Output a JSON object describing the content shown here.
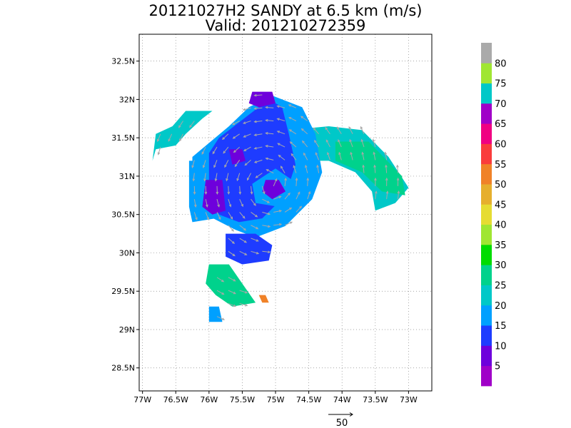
{
  "chart_data": {
    "type": "heatmap",
    "title": "20121027H2 SANDY at 6.5 km (m/s)",
    "subtitle": "Valid: 201210272359",
    "x_ticks": [
      {
        "value": -77.0,
        "label": "77W"
      },
      {
        "value": -76.5,
        "label": "76.5W"
      },
      {
        "value": -76.0,
        "label": "76W"
      },
      {
        "value": -75.5,
        "label": "75.5W"
      },
      {
        "value": -75.0,
        "label": "75W"
      },
      {
        "value": -74.5,
        "label": "74.5W"
      },
      {
        "value": -74.0,
        "label": "74W"
      },
      {
        "value": -73.5,
        "label": "73.5W"
      },
      {
        "value": -73.0,
        "label": "73W"
      }
    ],
    "y_ticks": [
      {
        "value": 28.5,
        "label": "28.5N"
      },
      {
        "value": 29.0,
        "label": "29N"
      },
      {
        "value": 29.5,
        "label": "29.5N"
      },
      {
        "value": 30.0,
        "label": "30N"
      },
      {
        "value": 30.5,
        "label": "30.5N"
      },
      {
        "value": 31.0,
        "label": "31N"
      },
      {
        "value": 31.5,
        "label": "31.5N"
      },
      {
        "value": 32.0,
        "label": "32N"
      },
      {
        "value": 32.5,
        "label": "32.5N"
      }
    ],
    "xlim": [
      -77.05,
      -72.65
    ],
    "ylim": [
      28.2,
      32.85
    ],
    "grid": true,
    "colorbar": {
      "labels": [
        "5",
        "10",
        "15",
        "20",
        "25",
        "30",
        "35",
        "40",
        "45",
        "50",
        "55",
        "60",
        "65",
        "70",
        "75",
        "80"
      ],
      "colors": [
        "#a000c8",
        "#6e00dc",
        "#1e3cff",
        "#00a0ff",
        "#00c8c8",
        "#00d28c",
        "#00dc00",
        "#a0e632",
        "#e6dc32",
        "#e6af2d",
        "#f08228",
        "#fa3c3c",
        "#f00082",
        "#a000c8",
        "#00c8c8",
        "#a0e632",
        "#aaaaaa"
      ]
    },
    "reference_vector": {
      "value": 50,
      "label": "50"
    },
    "regions": [
      {
        "name": "north-band-west",
        "level": 4,
        "poly": [
          [
            -76.8,
            31.35
          ],
          [
            -76.5,
            31.4
          ],
          [
            -76.35,
            31.55
          ],
          [
            -76.1,
            31.75
          ],
          [
            -75.95,
            31.85
          ],
          [
            -76.35,
            31.85
          ],
          [
            -76.55,
            31.65
          ],
          [
            -76.8,
            31.55
          ],
          [
            -76.85,
            31.2
          ]
        ]
      },
      {
        "name": "spiral-band-east",
        "level": 4,
        "poly": [
          [
            -74.8,
            31.6
          ],
          [
            -74.2,
            31.65
          ],
          [
            -73.7,
            31.6
          ],
          [
            -73.3,
            31.25
          ],
          [
            -73.0,
            30.85
          ],
          [
            -73.2,
            30.65
          ],
          [
            -73.5,
            30.55
          ],
          [
            -73.55,
            30.8
          ],
          [
            -73.8,
            31.05
          ],
          [
            -74.2,
            31.2
          ],
          [
            -74.75,
            31.2
          ]
        ]
      },
      {
        "name": "spiral-band-east-core",
        "level": 5,
        "poly": [
          [
            -74.1,
            31.45
          ],
          [
            -73.6,
            31.45
          ],
          [
            -73.1,
            31.0
          ],
          [
            -73.05,
            30.75
          ],
          [
            -73.4,
            30.8
          ],
          [
            -73.7,
            31.05
          ],
          [
            -74.1,
            31.2
          ]
        ]
      },
      {
        "name": "outer-ring",
        "level": 3,
        "poly": [
          [
            -76.25,
            31.25
          ],
          [
            -75.7,
            31.65
          ],
          [
            -75.4,
            31.9
          ],
          [
            -75.05,
            32.05
          ],
          [
            -74.6,
            31.9
          ],
          [
            -74.4,
            31.55
          ],
          [
            -74.3,
            31.05
          ],
          [
            -74.45,
            30.7
          ],
          [
            -74.85,
            30.35
          ],
          [
            -75.3,
            30.2
          ],
          [
            -75.6,
            30.3
          ],
          [
            -76.05,
            30.5
          ],
          [
            -76.25,
            30.75
          ]
        ]
      },
      {
        "name": "west-arc",
        "level": 3,
        "poly": [
          [
            -76.3,
            31.2
          ],
          [
            -75.9,
            31.2
          ],
          [
            -75.9,
            30.45
          ],
          [
            -76.25,
            30.4
          ],
          [
            -76.3,
            30.6
          ]
        ]
      },
      {
        "name": "inner-vortex",
        "level": 2,
        "poly": [
          [
            -75.85,
            31.5
          ],
          [
            -75.4,
            31.8
          ],
          [
            -75.1,
            32.0
          ],
          [
            -74.9,
            31.9
          ],
          [
            -74.8,
            31.55
          ],
          [
            -74.7,
            31.15
          ],
          [
            -74.85,
            30.75
          ],
          [
            -75.2,
            30.45
          ],
          [
            -75.55,
            30.4
          ],
          [
            -75.85,
            30.5
          ],
          [
            -76.0,
            30.85
          ],
          [
            -76.0,
            31.3
          ]
        ]
      },
      {
        "name": "rain-band-mid",
        "level": 3,
        "poly": [
          [
            -75.35,
            30.9
          ],
          [
            -75.0,
            31.1
          ],
          [
            -74.75,
            30.95
          ],
          [
            -74.7,
            30.7
          ],
          [
            -74.95,
            30.6
          ],
          [
            -75.3,
            30.65
          ]
        ]
      },
      {
        "name": "south-lobe",
        "level": 2,
        "poly": [
          [
            -75.75,
            30.25
          ],
          [
            -75.3,
            30.25
          ],
          [
            -75.05,
            30.1
          ],
          [
            -75.1,
            29.9
          ],
          [
            -75.5,
            29.85
          ],
          [
            -75.75,
            29.95
          ]
        ]
      },
      {
        "name": "southwest-band",
        "level": 5,
        "poly": [
          [
            -76.0,
            29.85
          ],
          [
            -75.7,
            29.85
          ],
          [
            -75.5,
            29.6
          ],
          [
            -75.3,
            29.35
          ],
          [
            -75.65,
            29.3
          ],
          [
            -75.9,
            29.45
          ],
          [
            -76.05,
            29.6
          ]
        ]
      },
      {
        "name": "southwest-patch",
        "level": 3,
        "poly": [
          [
            -76.0,
            29.3
          ],
          [
            -75.85,
            29.3
          ],
          [
            -75.8,
            29.1
          ],
          [
            -76.0,
            29.1
          ]
        ]
      },
      {
        "name": "core-north",
        "level": 1,
        "poly": [
          [
            -75.35,
            32.1
          ],
          [
            -75.05,
            32.1
          ],
          [
            -75.0,
            31.95
          ],
          [
            -75.25,
            31.9
          ],
          [
            -75.4,
            31.95
          ]
        ]
      },
      {
        "name": "core-west",
        "level": 1,
        "poly": [
          [
            -76.05,
            30.95
          ],
          [
            -75.8,
            30.95
          ],
          [
            -75.75,
            30.55
          ],
          [
            -75.95,
            30.5
          ],
          [
            -76.1,
            30.6
          ]
        ]
      },
      {
        "name": "core-center",
        "level": 1,
        "poly": [
          [
            -75.15,
            30.95
          ],
          [
            -74.95,
            30.95
          ],
          [
            -74.85,
            30.8
          ],
          [
            -75.05,
            30.7
          ],
          [
            -75.2,
            30.8
          ]
        ]
      },
      {
        "name": "north-cells",
        "level": 1,
        "poly": [
          [
            -75.7,
            31.35
          ],
          [
            -75.5,
            31.35
          ],
          [
            -75.45,
            31.2
          ],
          [
            -75.65,
            31.15
          ]
        ]
      },
      {
        "name": "hot-spot",
        "level": 10,
        "poly": [
          [
            -75.25,
            29.45
          ],
          [
            -75.15,
            29.45
          ],
          [
            -75.1,
            29.35
          ],
          [
            -75.2,
            29.35
          ]
        ]
      }
    ]
  }
}
